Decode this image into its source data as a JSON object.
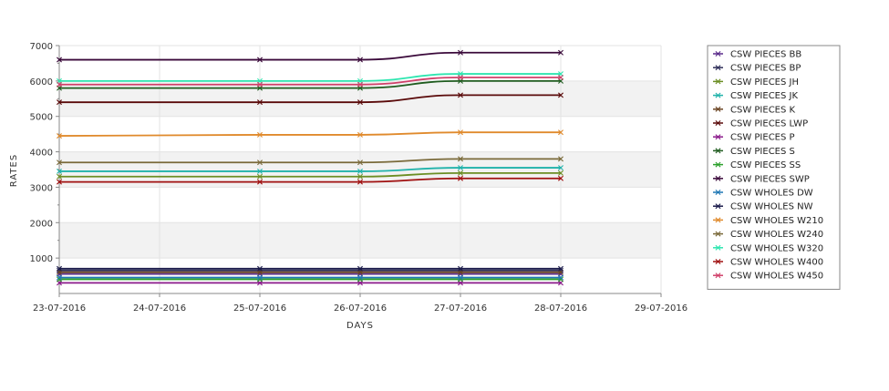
{
  "chart_data": {
    "type": "line",
    "title": "",
    "xlabel": "DAYS",
    "ylabel": "RATES",
    "x_ticks": [
      "23-07-2016",
      "24-07-2016",
      "25-07-2016",
      "26-07-2016",
      "27-07-2016",
      "28-07-2016",
      "29-07-2016"
    ],
    "x": [
      "23-07-2016",
      "25-07-2016",
      "26-07-2016",
      "27-07-2016",
      "28-07-2016"
    ],
    "y_ticks": [
      1000,
      2000,
      3000,
      4000,
      5000,
      6000,
      7000
    ],
    "ylim": [
      0,
      7000
    ],
    "grid": true,
    "legend_position": "right",
    "series": [
      {
        "name": "CSW PIECES BB",
        "color": "#5a2b8a",
        "values": [
          550,
          550,
          550,
          550,
          550
        ]
      },
      {
        "name": "CSW PIECES BP",
        "color": "#2f2f5a",
        "values": [
          650,
          650,
          650,
          650,
          650
        ]
      },
      {
        "name": "CSW PIECES JH",
        "color": "#6b8e23",
        "values": [
          3300,
          3300,
          3300,
          3400,
          3400
        ]
      },
      {
        "name": "CSW PIECES JK",
        "color": "#20b2aa",
        "values": [
          3450,
          3450,
          3450,
          3550,
          3550
        ]
      },
      {
        "name": "CSW PIECES K",
        "color": "#6b4423",
        "values": [
          600,
          600,
          600,
          600,
          600
        ]
      },
      {
        "name": "CSW PIECES LWP",
        "color": "#5a0a0a",
        "values": [
          5400,
          5400,
          5400,
          5600,
          5600
        ]
      },
      {
        "name": "CSW PIECES P",
        "color": "#8b1a8b",
        "values": [
          300,
          300,
          300,
          300,
          300
        ]
      },
      {
        "name": "CSW PIECES S",
        "color": "#1f5c1f",
        "values": [
          5800,
          5800,
          5800,
          6000,
          6000
        ]
      },
      {
        "name": "CSW PIECES SS",
        "color": "#2ca02c",
        "values": [
          400,
          400,
          400,
          400,
          400
        ]
      },
      {
        "name": "CSW PIECES SWP",
        "color": "#3b0a3b",
        "values": [
          6600,
          6600,
          6600,
          6800,
          6800
        ]
      },
      {
        "name": "CSW WHOLES DW",
        "color": "#1f77b4",
        "values": [
          450,
          450,
          450,
          450,
          450
        ]
      },
      {
        "name": "CSW WHOLES NW",
        "color": "#1a1a4a",
        "values": [
          700,
          700,
          700,
          700,
          700
        ]
      },
      {
        "name": "CSW WHOLES W210",
        "color": "#e08a2c",
        "values": [
          4450,
          4480,
          4480,
          4550,
          4550
        ]
      },
      {
        "name": "CSW WHOLES W240",
        "color": "#7a6a3a",
        "values": [
          3700,
          3700,
          3700,
          3800,
          3800
        ]
      },
      {
        "name": "CSW WHOLES W320",
        "color": "#2ee6b0",
        "values": [
          6000,
          6000,
          6000,
          6200,
          6200
        ]
      },
      {
        "name": "CSW WHOLES W400",
        "color": "#a01010",
        "values": [
          3150,
          3150,
          3150,
          3250,
          3250
        ]
      },
      {
        "name": "CSW WHOLES W450",
        "color": "#d0406a",
        "values": [
          5900,
          5900,
          5900,
          6100,
          6100
        ]
      }
    ]
  }
}
